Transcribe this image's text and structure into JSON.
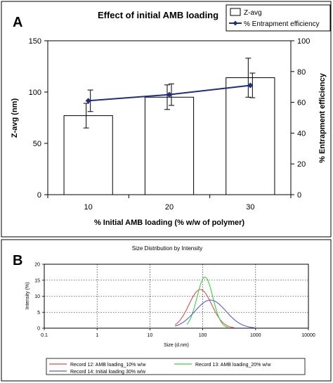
{
  "chart_data": [
    {
      "panel_label": "A",
      "type": "bar",
      "title": "Effect of initial AMB loading",
      "xlabel": "% Initial AMB loading (% w/w of polymer)",
      "ylabel": "Z-avg (nm)",
      "y2label": "% Entrapment efficiency",
      "categories": [
        "10",
        "20",
        "30"
      ],
      "ylim": [
        0,
        150
      ],
      "y2lim": [
        0,
        100
      ],
      "yticks": [
        "0",
        "50",
        "100",
        "150"
      ],
      "y2ticks": [
        "0",
        "20",
        "40",
        "60",
        "80",
        "100"
      ],
      "legend": [
        "Z-avg",
        "% Entrapment efficiency"
      ],
      "legend_position": "top-right",
      "grid": false,
      "series": [
        {
          "name": "Z-avg",
          "kind": "bar",
          "axis": "left",
          "values": [
            77,
            95,
            114
          ],
          "error": [
            12,
            12,
            19
          ],
          "color": "#ffffff"
        },
        {
          "name": "% Entrapment efficiency",
          "kind": "line",
          "axis": "right",
          "values": [
            61,
            65,
            71
          ],
          "error": [
            7,
            7,
            8
          ],
          "color": "#1f2f80"
        }
      ]
    },
    {
      "panel_label": "B",
      "type": "line",
      "title": "Size Distribution by Intensity",
      "xlabel": "Size (d.nm)",
      "ylabel": "Intensity (%)",
      "xscale": "log",
      "xlim": [
        0.1,
        10000
      ],
      "ylim": [
        0,
        20
      ],
      "xticks": [
        "0.1",
        "1",
        "10",
        "100",
        "1000",
        "10000"
      ],
      "yticks": [
        "0",
        "5",
        "10",
        "15",
        "20"
      ],
      "grid": true,
      "legend_position": "bottom",
      "series": [
        {
          "name": "Record 12: AMB loading_10% w/w",
          "color": "#e05050",
          "peak_x": 90,
          "peak_y": 12.1,
          "range": [
            30,
            400
          ]
        },
        {
          "name": "Record 13: AMB loading_20% w/w",
          "color": "#3ed23e",
          "peak_x": 110,
          "peak_y": 16.0,
          "range": [
            50,
            300
          ]
        },
        {
          "name": "Record 14: Initial loading 30% w/w",
          "color": "#5a5ae0",
          "peak_x": 140,
          "peak_y": 8.8,
          "range": [
            30,
            1000
          ]
        }
      ]
    }
  ]
}
